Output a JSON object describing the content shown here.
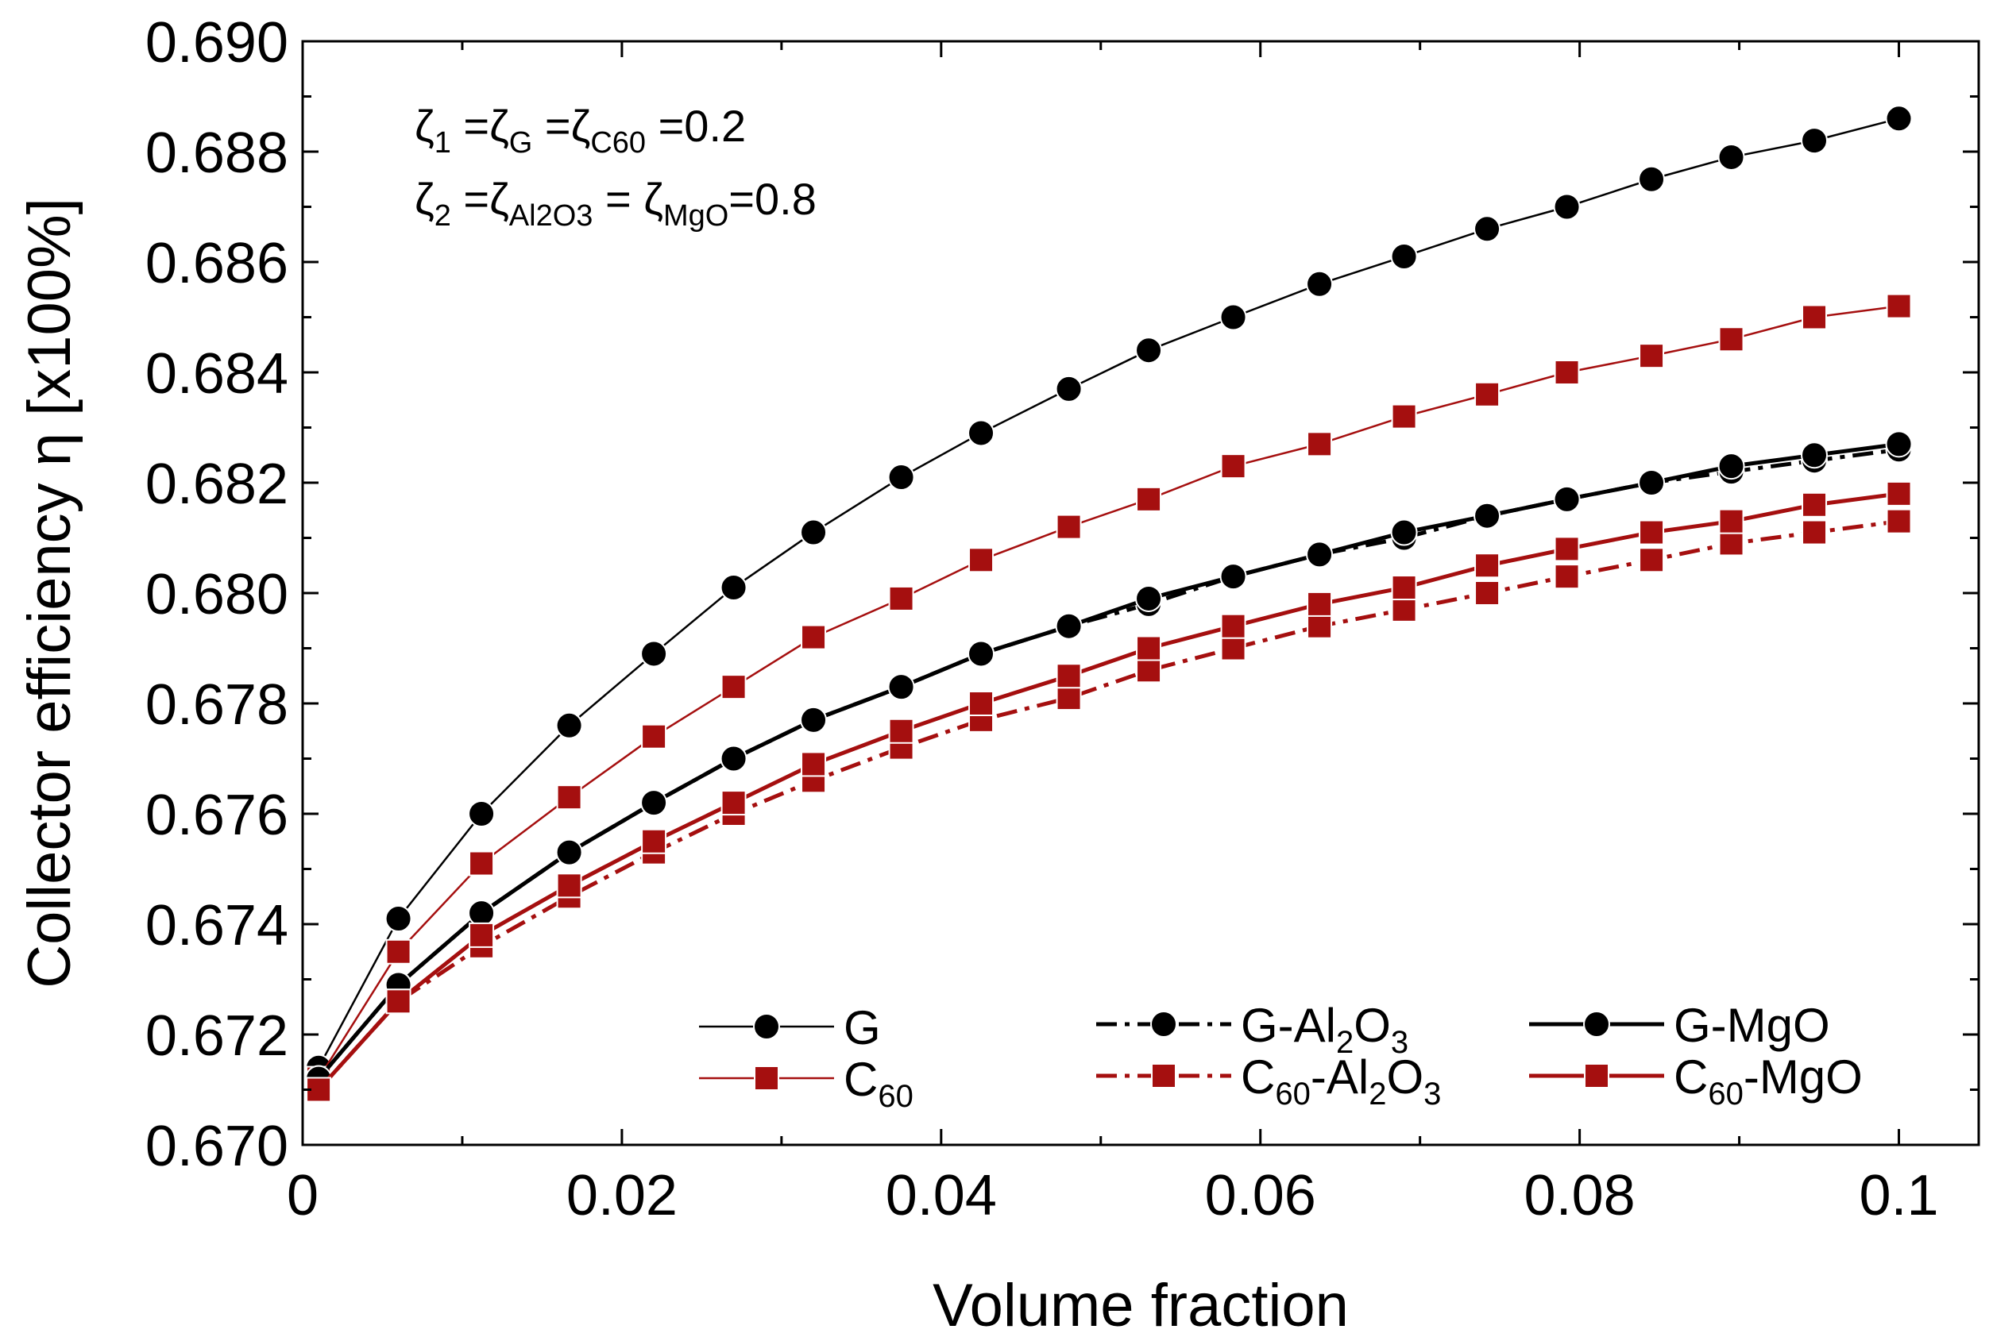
{
  "chart_data": {
    "type": "line",
    "title": "",
    "xlabel": "Volume fraction",
    "ylabel": "Collector efficiency η [x100%]",
    "xlim": [
      0,
      0.105
    ],
    "ylim": [
      0.67,
      0.69
    ],
    "xticks": [
      0,
      0.02,
      0.04,
      0.06,
      0.08,
      0.1
    ],
    "xtick_labels": [
      "0",
      "0.02",
      "0.04",
      "0.06",
      "0.08",
      "0.1"
    ],
    "yticks": [
      0.67,
      0.672,
      0.674,
      0.676,
      0.678,
      0.68,
      0.682,
      0.684,
      0.686,
      0.688,
      0.69
    ],
    "ytick_labels": [
      "0.670",
      "0.672",
      "0.674",
      "0.676",
      "0.678",
      "0.680",
      "0.682",
      "0.684",
      "0.686",
      "0.688",
      "0.690"
    ],
    "grid": false,
    "x": [
      0.001,
      0.006,
      0.0112,
      0.0167,
      0.022,
      0.027,
      0.032,
      0.0375,
      0.0425,
      0.048,
      0.053,
      0.0583,
      0.0637,
      0.069,
      0.0742,
      0.0792,
      0.0845,
      0.0895,
      0.0947,
      0.1
    ],
    "series": [
      {
        "name": "G",
        "color": "#000000",
        "marker": "circle",
        "dash": "solid",
        "weight": "thin",
        "values": [
          0.6714,
          0.6741,
          0.676,
          0.6776,
          0.6789,
          0.6801,
          0.6811,
          0.6821,
          0.6829,
          0.6837,
          0.6844,
          0.685,
          0.6856,
          0.6861,
          0.6866,
          0.687,
          0.6875,
          0.6879,
          0.6882,
          0.6886
        ]
      },
      {
        "name": "C60",
        "color": "#a50f0f",
        "marker": "square",
        "dash": "solid",
        "weight": "thin",
        "values": [
          0.6712,
          0.6735,
          0.6751,
          0.6763,
          0.6774,
          0.6783,
          0.6792,
          0.6799,
          0.6806,
          0.6812,
          0.6817,
          0.6823,
          0.6827,
          0.6832,
          0.6836,
          0.684,
          0.6843,
          0.6846,
          0.685,
          0.6852
        ]
      },
      {
        "name": "G-Al2O3",
        "color": "#000000",
        "marker": "circle",
        "dash": "dashdot",
        "weight": "thick",
        "values": [
          0.6712,
          0.6729,
          0.6742,
          0.6753,
          0.6762,
          0.677,
          0.6777,
          0.6783,
          0.6789,
          0.6794,
          0.6798,
          0.6803,
          0.6807,
          0.681,
          0.6814,
          0.6817,
          0.682,
          0.6822,
          0.6824,
          0.6826
        ]
      },
      {
        "name": "G-MgO",
        "color": "#000000",
        "marker": "circle",
        "dash": "solid",
        "weight": "thick",
        "values": [
          0.6712,
          0.6729,
          0.6742,
          0.6753,
          0.6762,
          0.677,
          0.6777,
          0.6783,
          0.6789,
          0.6794,
          0.6799,
          0.6803,
          0.6807,
          0.6811,
          0.6814,
          0.6817,
          0.682,
          0.6823,
          0.6825,
          0.6827
        ]
      },
      {
        "name": "C60-Al2O3",
        "color": "#a50f0f",
        "marker": "square",
        "dash": "dashdot",
        "weight": "thick",
        "values": [
          0.671,
          0.6726,
          0.6736,
          0.6745,
          0.6753,
          0.676,
          0.6766,
          0.6772,
          0.6777,
          0.6781,
          0.6786,
          0.679,
          0.6794,
          0.6797,
          0.68,
          0.6803,
          0.6806,
          0.6809,
          0.6811,
          0.6813
        ]
      },
      {
        "name": "C60-MgO",
        "color": "#a50f0f",
        "marker": "square",
        "dash": "solid",
        "weight": "thick",
        "values": [
          0.671,
          0.6726,
          0.6738,
          0.6747,
          0.6755,
          0.6762,
          0.6769,
          0.6775,
          0.678,
          0.6785,
          0.679,
          0.6794,
          0.6798,
          0.6801,
          0.6805,
          0.6808,
          0.6811,
          0.6813,
          0.6816,
          0.6818
        ]
      }
    ],
    "annotations": [
      {
        "zeta": "ζ",
        "sub1": "1",
        "mid1": " =ζ",
        "sub2": "G",
        "mid2": " =ζ",
        "sub3": "C60",
        "tail": " =0.2"
      },
      {
        "zeta": "ζ",
        "sub1": "2",
        "mid1": " =ζ",
        "sub2": "Al2O3",
        "mid2": " = ζ",
        "sub3": "MgO",
        "tail": "=0.8"
      }
    ],
    "legend": {
      "placement": "bottom-right",
      "entries": [
        {
          "series": "G",
          "label": [
            {
              "t": "G"
            }
          ]
        },
        {
          "series": "C60",
          "label": [
            {
              "t": "C"
            },
            {
              "t": "60",
              "sub": true
            }
          ]
        },
        {
          "series": "G-Al2O3",
          "label": [
            {
              "t": "G-Al"
            },
            {
              "t": "2",
              "sub": true
            },
            {
              "t": "O"
            },
            {
              "t": "3",
              "sub": true
            }
          ]
        },
        {
          "series": "C60-Al2O3",
          "label": [
            {
              "t": "C"
            },
            {
              "t": "60",
              "sub": true
            },
            {
              "t": "-Al"
            },
            {
              "t": "2",
              "sub": true
            },
            {
              "t": "O"
            },
            {
              "t": "3",
              "sub": true
            }
          ]
        },
        {
          "series": "G-MgO",
          "label": [
            {
              "t": "G-MgO"
            }
          ]
        },
        {
          "series": "C60-MgO",
          "label": [
            {
              "t": "C"
            },
            {
              "t": "60",
              "sub": true
            },
            {
              "t": "-MgO"
            }
          ]
        }
      ]
    }
  }
}
